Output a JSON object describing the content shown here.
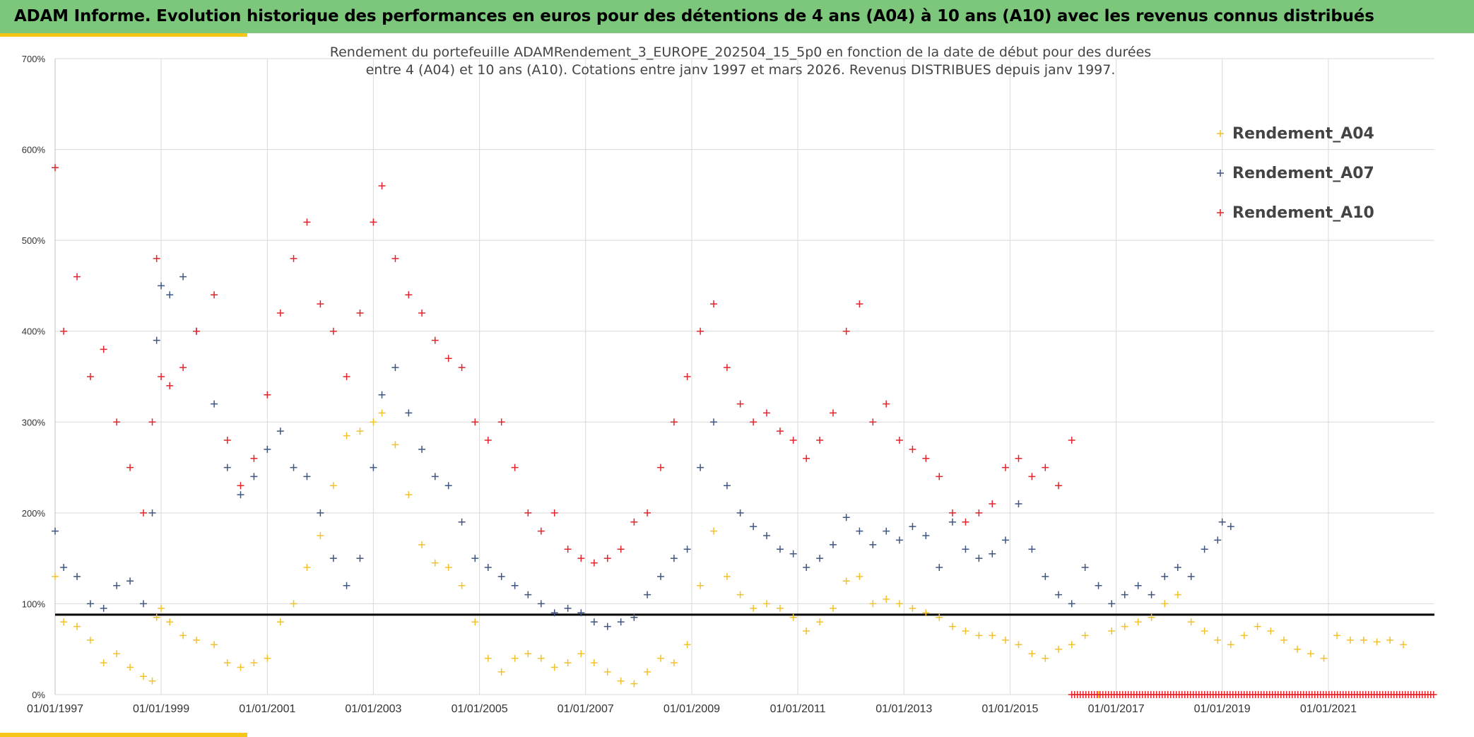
{
  "banner": {
    "title": "ADAM Informe. Evolution historique des performances en euros pour des détentions de 4 ans (A04) à 10 ans (A10) avec les revenus connus distribués"
  },
  "colors": {
    "banner": "#7cc77c",
    "accent": "#f5c518",
    "A04": "#f2c12e",
    "A07": "#3f5680",
    "A10": "#e0262b",
    "reference_line": "#000000"
  },
  "chart_data": {
    "type": "scatter",
    "title_lines": [
      "Rendement du portefeuille ADAMRendement_3_EUROPE_202504_15_5p0  en fonction de la date de début pour des durées",
      "entre 4 (A04) et 10 ans (A10). Cotations entre janv 1997 et mars 2026. Revenus DISTRIBUES depuis janv 1997."
    ],
    "xlabel": "",
    "ylabel": "",
    "x_range": [
      "1997-01-01",
      "2023-01-01"
    ],
    "ylim": [
      0,
      700
    ],
    "y_ticks": [
      "0%",
      "100%",
      "200%",
      "300%",
      "400%",
      "500%",
      "600%",
      "700%"
    ],
    "x_ticks": [
      "01/01/1997",
      "01/01/1999",
      "01/01/2001",
      "01/01/2003",
      "01/01/2005",
      "01/01/2007",
      "01/01/2009",
      "01/01/2011",
      "01/01/2013",
      "01/01/2015",
      "01/01/2017",
      "01/01/2019",
      "01/01/2021"
    ],
    "grid": true,
    "legend_position": "top-right",
    "marker": "+",
    "reference_line_y": 88,
    "series": [
      {
        "name": "Rendement_A04",
        "x": [
          "1997-01-01",
          "1997-03-01",
          "1997-06-01",
          "1997-09-01",
          "1997-12-01",
          "1998-03-01",
          "1998-06-01",
          "1998-09-01",
          "1998-11-01",
          "1998-12-01",
          "1999-01-01",
          "1999-03-01",
          "1999-06-01",
          "1999-09-01",
          "2000-01-01",
          "2000-04-01",
          "2000-07-01",
          "2000-10-01",
          "2001-01-01",
          "2001-04-01",
          "2001-07-01",
          "2001-10-01",
          "2002-01-01",
          "2002-04-01",
          "2002-07-01",
          "2002-10-01",
          "2003-01-01",
          "2003-03-01",
          "2003-06-01",
          "2003-09-01",
          "2003-12-01",
          "2004-03-01",
          "2004-06-01",
          "2004-09-01",
          "2004-12-01",
          "2005-03-01",
          "2005-06-01",
          "2005-09-01",
          "2005-12-01",
          "2006-03-01",
          "2006-06-01",
          "2006-09-01",
          "2006-12-01",
          "2007-03-01",
          "2007-06-01",
          "2007-09-01",
          "2007-12-01",
          "2008-03-01",
          "2008-06-01",
          "2008-09-01",
          "2008-12-01",
          "2009-03-01",
          "2009-06-01",
          "2009-09-01",
          "2009-12-01",
          "2010-03-01",
          "2010-06-01",
          "2010-09-01",
          "2010-12-01",
          "2011-03-01",
          "2011-06-01",
          "2011-09-01",
          "2011-12-01",
          "2012-03-01",
          "2012-06-01",
          "2012-09-01",
          "2012-12-01",
          "2013-03-01",
          "2013-06-01",
          "2013-09-01",
          "2013-12-01",
          "2014-03-01",
          "2014-06-01",
          "2014-09-01",
          "2014-12-01",
          "2015-03-01",
          "2015-06-01",
          "2015-09-01",
          "2015-12-01",
          "2016-03-01",
          "2016-06-01",
          "2016-09-01",
          "2016-12-01",
          "2017-03-01",
          "2017-06-01",
          "2017-09-01",
          "2017-12-01",
          "2018-03-01",
          "2018-06-01",
          "2018-09-01",
          "2018-12-01",
          "2019-03-01",
          "2019-06-01",
          "2019-09-01",
          "2019-12-01",
          "2020-03-01",
          "2020-06-01",
          "2020-09-01",
          "2020-12-01",
          "2021-03-01",
          "2021-06-01",
          "2021-09-01",
          "2021-12-01",
          "2022-03-01",
          "2022-06-01"
        ],
        "y": [
          130,
          80,
          75,
          60,
          35,
          45,
          30,
          20,
          15,
          85,
          95,
          80,
          65,
          60,
          55,
          35,
          30,
          35,
          40,
          80,
          100,
          140,
          175,
          230,
          285,
          290,
          300,
          310,
          275,
          220,
          165,
          145,
          140,
          120,
          80,
          40,
          25,
          40,
          45,
          40,
          30,
          35,
          45,
          35,
          25,
          15,
          12,
          25,
          40,
          35,
          55,
          120,
          180,
          130,
          110,
          95,
          100,
          95,
          85,
          70,
          80,
          95,
          125,
          130,
          100,
          105,
          100,
          95,
          90,
          85,
          75,
          70,
          65,
          65,
          60,
          55,
          45,
          40,
          50,
          55,
          65,
          0,
          70,
          75,
          80,
          85,
          100,
          110,
          80,
          70,
          60,
          55,
          65,
          75,
          70,
          60,
          50,
          45,
          40,
          65,
          60,
          60,
          58,
          60,
          55
        ]
      },
      {
        "name": "Rendement_A07",
        "x": [
          "1997-01-01",
          "1997-03-01",
          "1997-06-01",
          "1997-09-01",
          "1997-12-01",
          "1998-03-01",
          "1998-06-01",
          "1998-09-01",
          "1998-11-01",
          "1998-12-01",
          "1999-01-01",
          "1999-03-01",
          "1999-06-01",
          "1999-09-01",
          "2000-01-01",
          "2000-04-01",
          "2000-07-01",
          "2000-10-01",
          "2001-01-01",
          "2001-04-01",
          "2001-07-01",
          "2001-10-01",
          "2002-01-01",
          "2002-04-01",
          "2002-07-01",
          "2002-10-01",
          "2003-01-01",
          "2003-03-01",
          "2003-06-01",
          "2003-09-01",
          "2003-12-01",
          "2004-03-01",
          "2004-06-01",
          "2004-09-01",
          "2004-12-01",
          "2005-03-01",
          "2005-06-01",
          "2005-09-01",
          "2005-12-01",
          "2006-03-01",
          "2006-06-01",
          "2006-09-01",
          "2006-12-01",
          "2007-03-01",
          "2007-06-01",
          "2007-09-01",
          "2007-12-01",
          "2008-03-01",
          "2008-06-01",
          "2008-09-01",
          "2008-12-01",
          "2009-03-01",
          "2009-06-01",
          "2009-09-01",
          "2009-12-01",
          "2010-03-01",
          "2010-06-01",
          "2010-09-01",
          "2010-12-01",
          "2011-03-01",
          "2011-06-01",
          "2011-09-01",
          "2011-12-01",
          "2012-03-01",
          "2012-06-01",
          "2012-09-01",
          "2012-12-01",
          "2013-03-01",
          "2013-06-01",
          "2013-09-01",
          "2013-12-01",
          "2014-03-01",
          "2014-06-01",
          "2014-09-01",
          "2014-12-01",
          "2015-03-01",
          "2015-06-01",
          "2015-09-01",
          "2015-12-01",
          "2016-03-01",
          "2016-06-01",
          "2016-09-01",
          "2016-12-01",
          "2017-03-01",
          "2017-06-01",
          "2017-09-01",
          "2017-12-01",
          "2018-03-01",
          "2018-06-01",
          "2018-09-01",
          "2018-12-01",
          "2019-01-01",
          "2019-03-01"
        ],
        "y": [
          180,
          140,
          130,
          100,
          95,
          120,
          125,
          100,
          200,
          390,
          450,
          440,
          460,
          400,
          320,
          250,
          220,
          240,
          270,
          290,
          250,
          240,
          200,
          150,
          120,
          150,
          250,
          330,
          360,
          310,
          270,
          240,
          230,
          190,
          150,
          140,
          130,
          120,
          110,
          100,
          90,
          95,
          90,
          80,
          75,
          80,
          85,
          110,
          130,
          150,
          160,
          250,
          300,
          230,
          200,
          185,
          175,
          160,
          155,
          140,
          150,
          165,
          195,
          180,
          165,
          180,
          170,
          185,
          175,
          140,
          190,
          160,
          150,
          155,
          170,
          210,
          160,
          130,
          110,
          100,
          140,
          120,
          100,
          110,
          120,
          110,
          130,
          140,
          130,
          160,
          170,
          190,
          185
        ]
      },
      {
        "name": "Rendement_A10",
        "x": [
          "1997-01-01",
          "1997-03-01",
          "1997-06-01",
          "1997-09-01",
          "1997-12-01",
          "1998-03-01",
          "1998-06-01",
          "1998-09-01",
          "1998-11-01",
          "1998-12-01",
          "1999-01-01",
          "1999-03-01",
          "1999-06-01",
          "1999-09-01",
          "2000-01-01",
          "2000-04-01",
          "2000-07-01",
          "2000-10-01",
          "2001-01-01",
          "2001-04-01",
          "2001-07-01",
          "2001-10-01",
          "2002-01-01",
          "2002-04-01",
          "2002-07-01",
          "2002-10-01",
          "2003-01-01",
          "2003-03-01",
          "2003-06-01",
          "2003-09-01",
          "2003-12-01",
          "2004-03-01",
          "2004-06-01",
          "2004-09-01",
          "2004-12-01",
          "2005-03-01",
          "2005-06-01",
          "2005-09-01",
          "2005-12-01",
          "2006-03-01",
          "2006-06-01",
          "2006-09-01",
          "2006-12-01",
          "2007-03-01",
          "2007-06-01",
          "2007-09-01",
          "2007-12-01",
          "2008-03-01",
          "2008-06-01",
          "2008-09-01",
          "2008-12-01",
          "2009-03-01",
          "2009-06-01",
          "2009-09-01",
          "2009-12-01",
          "2010-03-01",
          "2010-06-01",
          "2010-09-01",
          "2010-12-01",
          "2011-03-01",
          "2011-06-01",
          "2011-09-01",
          "2011-12-01",
          "2012-03-01",
          "2012-06-01",
          "2012-09-01",
          "2012-12-01",
          "2013-03-01",
          "2013-06-01",
          "2013-09-01",
          "2013-12-01",
          "2014-03-01",
          "2014-06-01",
          "2014-09-01",
          "2014-12-01",
          "2015-03-01",
          "2015-06-01",
          "2015-09-01",
          "2015-12-01",
          "2016-03-01"
        ],
        "y": [
          580,
          400,
          460,
          350,
          380,
          300,
          250,
          200,
          300,
          480,
          350,
          340,
          360,
          400,
          440,
          280,
          230,
          260,
          330,
          420,
          480,
          520,
          430,
          400,
          350,
          420,
          520,
          560,
          480,
          440,
          420,
          390,
          370,
          360,
          300,
          280,
          300,
          250,
          200,
          180,
          200,
          160,
          150,
          145,
          150,
          160,
          190,
          200,
          250,
          300,
          350,
          400,
          430,
          360,
          320,
          300,
          310,
          290,
          280,
          260,
          280,
          310,
          400,
          430,
          300,
          320,
          280,
          270,
          260,
          240,
          200,
          190,
          200,
          210,
          250,
          260,
          240,
          250,
          230,
          280
        ]
      }
    ],
    "marker_band": {
      "name": "Rendement_A10 (0%)",
      "x_range": [
        "2016-03-01",
        "2023-01-01"
      ],
      "y": 0
    }
  }
}
